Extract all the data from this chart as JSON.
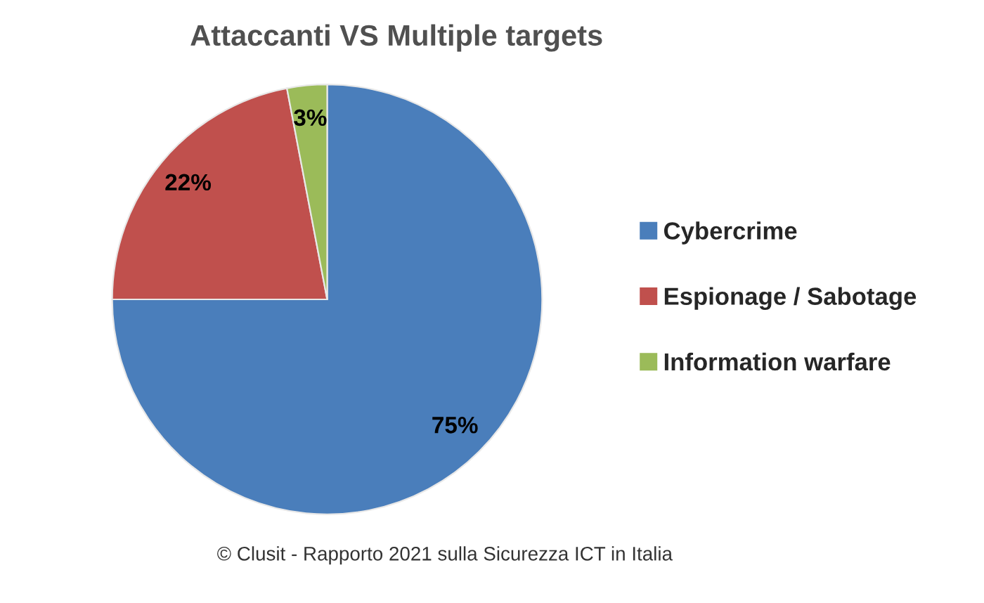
{
  "chart_data": {
    "type": "pie",
    "title": "Attaccanti VS Multiple targets",
    "categories": [
      "Cybercrime",
      "Espionage / Sabotage",
      "Information warfare"
    ],
    "values": [
      75,
      22,
      3
    ],
    "value_labels": [
      "75%",
      "22%",
      "3%"
    ],
    "colors": [
      "#4a7ebb",
      "#c0504d",
      "#9bbb59"
    ],
    "legend": "right",
    "annotations": [
      "© Clusit - Rapporto 2021 sulla Sicurezza ICT in Italia"
    ]
  }
}
